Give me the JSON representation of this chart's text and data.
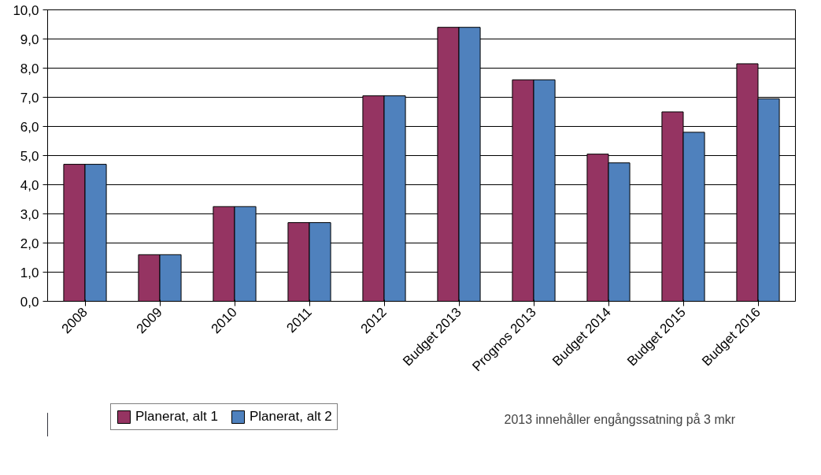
{
  "chart_data": {
    "type": "bar",
    "categories": [
      "2008",
      "2009",
      "2010",
      "2011",
      "2012",
      "Budget 2013",
      "Prognos 2013",
      "Budget 2014",
      "Budget 2015",
      "Budget 2016"
    ],
    "series": [
      {
        "name": "Planerat, alt 1",
        "color": "#953462",
        "values": [
          4.7,
          1.6,
          3.25,
          2.7,
          7.05,
          9.4,
          7.6,
          5.05,
          6.5,
          8.15
        ]
      },
      {
        "name": "Planerat, alt 2",
        "color": "#4f81bd",
        "values": [
          4.7,
          1.6,
          3.25,
          2.7,
          7.05,
          9.4,
          7.6,
          4.75,
          5.8,
          6.95
        ]
      }
    ],
    "ylim": [
      0,
      10
    ],
    "yticks": [
      {
        "value": 0,
        "label": "0,0"
      },
      {
        "value": 1,
        "label": "1,0"
      },
      {
        "value": 2,
        "label": "2,0"
      },
      {
        "value": 3,
        "label": "3,0"
      },
      {
        "value": 4,
        "label": "4,0"
      },
      {
        "value": 5,
        "label": "5,0"
      },
      {
        "value": 6,
        "label": "6,0"
      },
      {
        "value": 7,
        "label": "7,0"
      },
      {
        "value": 8,
        "label": "8,0"
      },
      {
        "value": 9,
        "label": "9,0"
      },
      {
        "value": 10,
        "label": "10,0"
      }
    ],
    "grid": "y",
    "legend": "bottom left",
    "annotations": [
      "2013 innehåller engångssatning på 3 mkr"
    ]
  }
}
